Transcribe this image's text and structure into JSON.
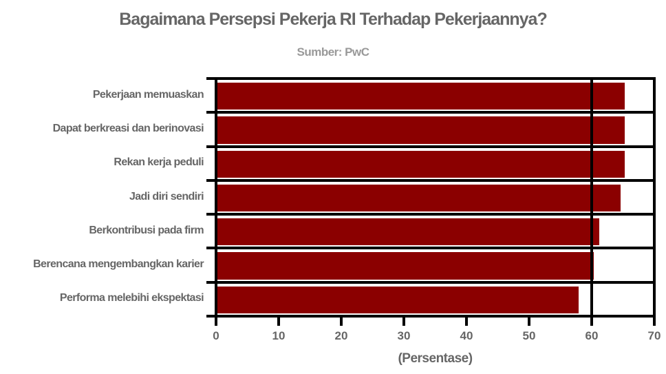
{
  "chart_data": {
    "type": "bar",
    "orientation": "horizontal",
    "title": "Bagaimana Persepsi Pekerja RI Terhadap Pekerjaannya?",
    "subtitle": "Sumber: PwC",
    "xlabel": "(Persentase)",
    "ylabel": "",
    "categories": [
      "Pekerjaan memuaskan",
      "Dapat berkreasi dan berinovasi",
      "Rekan kerja peduli",
      "Jadi diri sendiri",
      "Berkontribusi pada firm",
      "Berencana mengembangkan karier",
      "Performa melebihi ekspektasi"
    ],
    "values": [
      65.3,
      65.3,
      65.3,
      64.6,
      61.2,
      60.3,
      57.9
    ],
    "xlim": [
      0,
      70
    ],
    "xticks": [
      "0",
      "10",
      "20",
      "30",
      "40",
      "50",
      "60",
      "70"
    ],
    "grid": true,
    "legend": null,
    "bar_color": "#8b0000"
  },
  "colors": {
    "bar": "#8b0000",
    "title": "#666666",
    "subtitle": "#999999",
    "axis": "#000000"
  }
}
